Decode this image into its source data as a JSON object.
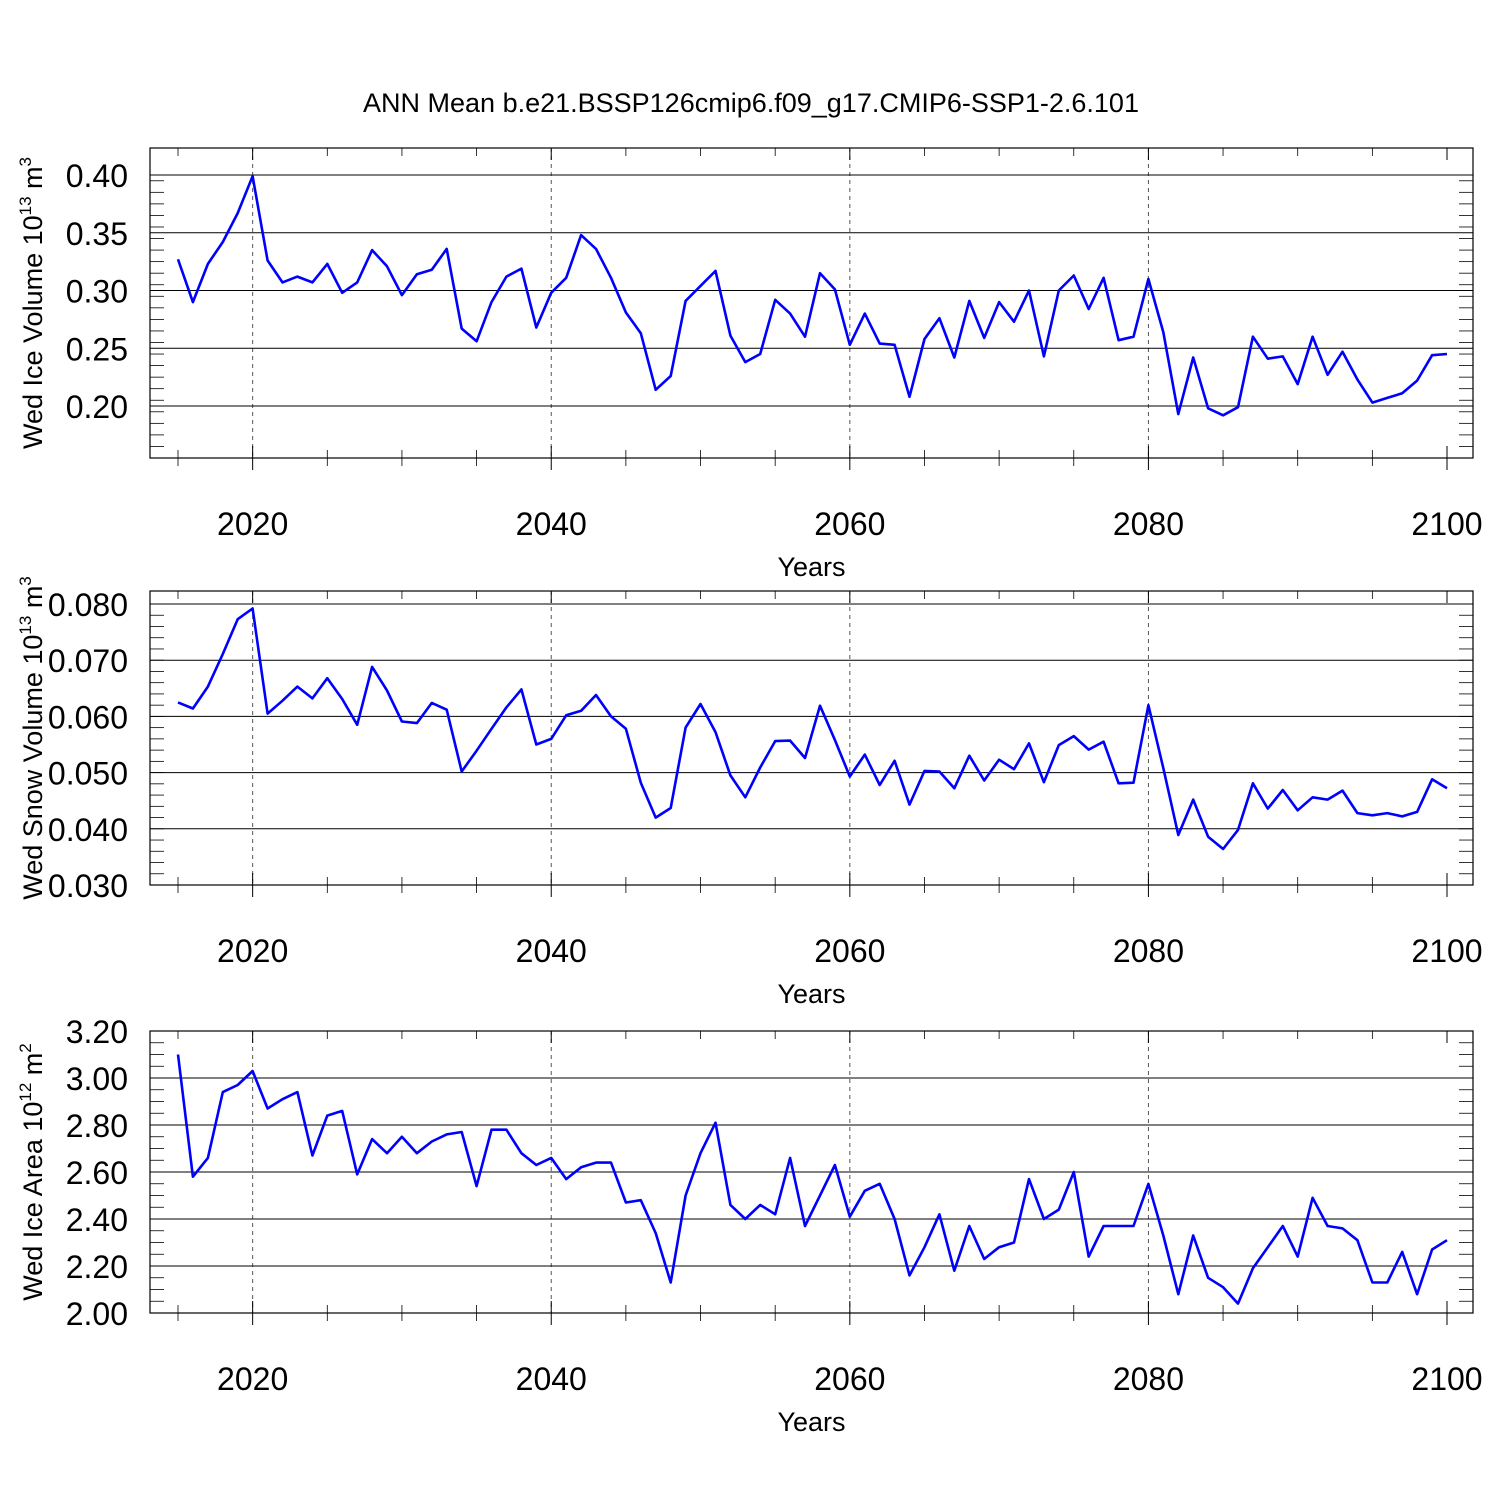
{
  "figure": {
    "title": "ANN Mean b.e21.BSSP126cmip6.f09_g17.CMIP6-SSP1-2.6.101",
    "line_color": "#0000ff",
    "grid_color": "#555555"
  },
  "chart_data": [
    {
      "type": "line",
      "title": "ANN Mean b.e21.BSSP126cmip6.f09_g17.CMIP6-SSP1-2.6.101",
      "xlabel": "Years",
      "ylabel": {
        "text": "Wed Ice Volume 10",
        "sup1": "13",
        "mid": " m",
        "sup2": "3"
      },
      "xlim": [
        2015,
        2100
      ],
      "ylim": [
        0.155,
        0.4
      ],
      "x_ticks": [
        2020,
        2040,
        2060,
        2080,
        2100
      ],
      "x_tick_labels": [
        "2020",
        "2040",
        "2060",
        "2080",
        "2100"
      ],
      "y_ticks": [
        0.2,
        0.25,
        0.3,
        0.35,
        0.4
      ],
      "y_tick_labels": [
        "0.20",
        "0.25",
        "0.30",
        "0.35",
        "0.40"
      ],
      "y_minor_step": 0.01,
      "grid": "dashed vertical at major x ticks",
      "series": [
        {
          "color": "#0000ff",
          "x_start": 2015,
          "values": [
            0.327,
            0.29,
            0.323,
            0.342,
            0.367,
            0.399,
            0.326,
            0.307,
            0.312,
            0.307,
            0.323,
            0.298,
            0.307,
            0.335,
            0.321,
            0.296,
            0.314,
            0.318,
            0.336,
            0.267,
            0.256,
            0.29,
            0.312,
            0.319,
            0.268,
            0.298,
            0.311,
            0.348,
            0.336,
            0.311,
            0.281,
            0.263,
            0.214,
            0.226,
            0.291,
            0.304,
            0.317,
            0.261,
            0.238,
            0.245,
            0.292,
            0.28,
            0.26,
            0.315,
            0.301,
            0.253,
            0.28,
            0.254,
            0.253,
            0.208,
            0.258,
            0.276,
            0.242,
            0.291,
            0.259,
            0.29,
            0.273,
            0.3,
            0.243,
            0.3,
            0.313,
            0.284,
            0.311,
            0.257,
            0.26,
            0.31,
            0.264,
            0.193,
            0.242,
            0.198,
            0.192,
            0.199,
            0.26,
            0.241,
            0.243,
            0.219,
            0.26,
            0.227,
            0.247,
            0.223,
            0.203,
            0.207,
            0.211,
            0.222,
            0.244,
            0.245
          ]
        }
      ]
    },
    {
      "type": "line",
      "xlabel": "Years",
      "ylabel": {
        "text": "Wed Snow Volume 10",
        "sup1": "13",
        "mid": " m",
        "sup2": "3"
      },
      "xlim": [
        2015,
        2100
      ],
      "ylim": [
        0.03,
        0.08
      ],
      "x_ticks": [
        2020,
        2040,
        2060,
        2080,
        2100
      ],
      "x_tick_labels": [
        "2020",
        "2040",
        "2060",
        "2080",
        "2100"
      ],
      "y_ticks": [
        0.03,
        0.04,
        0.05,
        0.06,
        0.07,
        0.08
      ],
      "y_tick_labels": [
        "0.030",
        "0.040",
        "0.050",
        "0.060",
        "0.070",
        "0.080"
      ],
      "y_minor_step": 0.002,
      "grid": "dashed vertical at major x ticks",
      "series": [
        {
          "color": "#0000ff",
          "x_start": 2015,
          "values": [
            0.0625,
            0.0614,
            0.0653,
            0.0711,
            0.0773,
            0.0792,
            0.0605,
            0.0628,
            0.0653,
            0.0632,
            0.0668,
            0.0631,
            0.0585,
            0.0688,
            0.0646,
            0.0591,
            0.0588,
            0.0624,
            0.0612,
            0.0502,
            0.0539,
            0.0578,
            0.0616,
            0.0648,
            0.055,
            0.056,
            0.0602,
            0.061,
            0.0638,
            0.06,
            0.0578,
            0.0482,
            0.042,
            0.0437,
            0.058,
            0.0622,
            0.0572,
            0.0495,
            0.0456,
            0.0509,
            0.0556,
            0.0557,
            0.0526,
            0.0619,
            0.0558,
            0.0493,
            0.0532,
            0.0478,
            0.0521,
            0.0443,
            0.0503,
            0.0502,
            0.0472,
            0.053,
            0.0486,
            0.0523,
            0.0506,
            0.0552,
            0.0483,
            0.0549,
            0.0565,
            0.0541,
            0.0555,
            0.0481,
            0.0482,
            0.062,
            0.0508,
            0.0389,
            0.0452,
            0.0386,
            0.0364,
            0.0398,
            0.0481,
            0.0436,
            0.0469,
            0.0433,
            0.0456,
            0.0452,
            0.0468,
            0.0428,
            0.0424,
            0.0428,
            0.0422,
            0.043,
            0.0488,
            0.0472
          ]
        }
      ]
    },
    {
      "type": "line",
      "xlabel": "Years",
      "ylabel": {
        "text": "Wed Ice Area 10",
        "sup1": "12",
        "mid": " m",
        "sup2": "2"
      },
      "xlim": [
        2015,
        2100
      ],
      "ylim": [
        2.0,
        3.2
      ],
      "x_ticks": [
        2020,
        2040,
        2060,
        2080,
        2100
      ],
      "x_tick_labels": [
        "2020",
        "2040",
        "2060",
        "2080",
        "2100"
      ],
      "y_ticks": [
        2.0,
        2.2,
        2.4,
        2.6,
        2.8,
        3.0,
        3.2
      ],
      "y_tick_labels": [
        "2.00",
        "2.20",
        "2.40",
        "2.60",
        "2.80",
        "3.00",
        "3.20"
      ],
      "y_minor_step": 0.05,
      "grid": "dashed vertical at major x ticks",
      "series": [
        {
          "color": "#0000ff",
          "x_start": 2015,
          "values": [
            3.1,
            2.58,
            2.66,
            2.94,
            2.97,
            3.03,
            2.87,
            2.91,
            2.94,
            2.67,
            2.84,
            2.86,
            2.59,
            2.74,
            2.68,
            2.75,
            2.68,
            2.73,
            2.76,
            2.77,
            2.54,
            2.78,
            2.78,
            2.68,
            2.63,
            2.66,
            2.57,
            2.62,
            2.64,
            2.64,
            2.47,
            2.48,
            2.34,
            2.13,
            2.5,
            2.68,
            2.81,
            2.46,
            2.4,
            2.46,
            2.42,
            2.66,
            2.37,
            2.5,
            2.63,
            2.41,
            2.52,
            2.55,
            2.4,
            2.16,
            2.28,
            2.42,
            2.18,
            2.37,
            2.23,
            2.28,
            2.3,
            2.57,
            2.4,
            2.44,
            2.6,
            2.24,
            2.37,
            2.37,
            2.37,
            2.55,
            2.33,
            2.08,
            2.33,
            2.15,
            2.11,
            2.04,
            2.19,
            2.28,
            2.37,
            2.24,
            2.49,
            2.37,
            2.36,
            2.31,
            2.13,
            2.13,
            2.26,
            2.08,
            2.27,
            2.31
          ]
        }
      ]
    }
  ]
}
